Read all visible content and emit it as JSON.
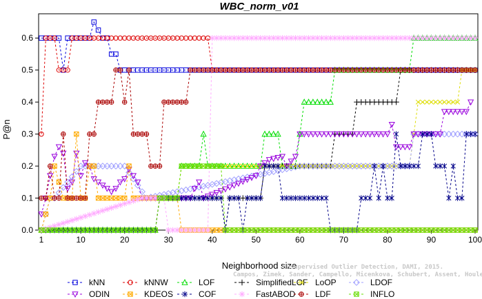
{
  "chart_data": {
    "type": "line",
    "title": "WBC_norm_v01",
    "xlabel": "Neighborhood size",
    "ylabel": "P@n",
    "xlim": [
      1,
      100
    ],
    "ylim": [
      0,
      0.65
    ],
    "xticks": [
      1,
      10,
      20,
      30,
      40,
      50,
      60,
      70,
      80,
      90,
      100
    ],
    "yticks": [
      0.0,
      0.1,
      0.2,
      0.3,
      0.4,
      0.5,
      0.6
    ],
    "grid": false,
    "legend_position": "bottom",
    "credit": "Campos, Zimek, Sander, Campello, Micenkova, Schubert, Assent, Houle",
    "credit_line1": "Unsupervised Outlier Detection, DAMI, 2015.",
    "series": [
      {
        "name": "kNN",
        "color": "#0000dd",
        "marker": "square",
        "segments": [
          [
            1,
            0.6
          ],
          [
            5,
            0.6
          ],
          [
            6,
            0.5
          ],
          [
            7,
            0.6
          ],
          [
            12,
            0.6
          ],
          [
            13,
            0.65
          ],
          [
            15,
            0.6
          ],
          [
            16,
            0.6
          ],
          [
            17,
            0.55
          ],
          [
            18,
            0.55
          ],
          [
            19,
            0.5
          ],
          [
            100,
            0.5
          ]
        ]
      },
      {
        "name": "kNNW",
        "color": "#dd0000",
        "marker": "circle",
        "segments": [
          [
            1,
            0.3
          ],
          [
            2,
            0.6
          ],
          [
            4,
            0.6
          ],
          [
            5,
            0.5
          ],
          [
            7,
            0.5
          ],
          [
            8,
            0.6
          ],
          [
            37,
            0.6
          ],
          [
            38,
            0.6
          ],
          [
            39,
            0.6
          ],
          [
            40,
            0.5
          ],
          [
            100,
            0.5
          ]
        ]
      },
      {
        "name": "LOF",
        "color": "#00dd00",
        "marker": "triangle",
        "segments": [
          [
            1,
            0.0
          ],
          [
            27,
            0.0
          ],
          [
            28,
            0.1
          ],
          [
            32,
            0.1
          ],
          [
            33,
            0.2
          ],
          [
            37,
            0.2
          ],
          [
            38,
            0.3
          ],
          [
            39,
            0.2
          ],
          [
            51,
            0.2
          ],
          [
            52,
            0.3
          ],
          [
            55,
            0.3
          ],
          [
            56,
            0.2
          ],
          [
            59,
            0.2
          ],
          [
            60,
            0.3
          ],
          [
            61,
            0.4
          ],
          [
            67,
            0.4
          ],
          [
            68,
            0.5
          ],
          [
            85,
            0.5
          ],
          [
            86,
            0.6
          ],
          [
            100,
            0.6
          ]
        ]
      },
      {
        "name": "SimplifiedLOF",
        "color": "#000000",
        "marker": "plus",
        "segments": [
          [
            1,
            0.0
          ],
          [
            27,
            0.0
          ],
          [
            28,
            0.1
          ],
          [
            42,
            0.1
          ],
          [
            43,
            0.0
          ],
          [
            44,
            0.1
          ],
          [
            51,
            0.1
          ],
          [
            52,
            0.2
          ],
          [
            67,
            0.2
          ],
          [
            68,
            0.3
          ],
          [
            72,
            0.3
          ],
          [
            73,
            0.4
          ],
          [
            82,
            0.4
          ],
          [
            83,
            0.5
          ],
          [
            100,
            0.5
          ]
        ]
      },
      {
        "name": "LoOP",
        "color": "#dddd00",
        "marker": "x",
        "segments": [
          [
            1,
            0.0
          ],
          [
            27,
            0.0
          ],
          [
            28,
            0.1
          ],
          [
            32,
            0.1
          ],
          [
            33,
            0.2
          ],
          [
            85,
            0.2
          ],
          [
            86,
            0.3
          ],
          [
            87,
            0.4
          ],
          [
            95,
            0.4
          ],
          [
            96,
            0.4
          ],
          [
            97,
            0.5
          ],
          [
            100,
            0.5
          ]
        ]
      },
      {
        "name": "LDOF",
        "color": "#a0a0ff",
        "marker": "diamond",
        "segments": [
          [
            1,
            0.0
          ],
          [
            3,
            0.1
          ],
          [
            4,
            0.1
          ],
          [
            10,
            0.2
          ],
          [
            20,
            0.2
          ],
          [
            25,
            0.1
          ],
          [
            60,
            0.2
          ],
          [
            85,
            0.2
          ],
          [
            86,
            0.3
          ],
          [
            100,
            0.3
          ]
        ]
      },
      {
        "name": "ODIN",
        "color": "#9900dd",
        "marker": "triangle-down",
        "segments": [
          [
            1,
            0.05
          ],
          [
            2,
            0.1
          ],
          [
            3,
            0.17
          ],
          [
            4,
            0.23
          ],
          [
            5,
            0.26
          ],
          [
            6,
            0.24
          ],
          [
            7,
            0.13
          ],
          [
            8,
            0.15
          ],
          [
            9,
            0.24
          ],
          [
            10,
            0.17
          ],
          [
            11,
            0.21
          ],
          [
            12,
            0.2
          ],
          [
            13,
            0.16
          ],
          [
            14,
            0.15
          ],
          [
            15,
            0.14
          ],
          [
            16,
            0.13
          ],
          [
            17,
            0.12
          ],
          [
            18,
            0.13
          ],
          [
            19,
            0.15
          ],
          [
            20,
            0.16
          ],
          [
            21,
            0.19
          ],
          [
            22,
            0.17
          ],
          [
            23,
            0.15
          ],
          [
            24,
            0.1
          ],
          [
            30,
            0.1
          ],
          [
            35,
            0.1
          ],
          [
            36,
            0.13
          ],
          [
            37,
            0.15
          ],
          [
            38,
            0.1
          ],
          [
            45,
            0.14
          ],
          [
            50,
            0.17
          ],
          [
            51,
            0.2
          ],
          [
            53,
            0.22
          ],
          [
            56,
            0.23
          ],
          [
            57,
            0.2
          ],
          [
            59,
            0.23
          ],
          [
            60,
            0.3
          ],
          [
            80,
            0.3
          ],
          [
            81,
            0.33
          ],
          [
            82,
            0.26
          ],
          [
            85,
            0.26
          ],
          [
            86,
            0.3
          ],
          [
            92,
            0.3
          ],
          [
            93,
            0.37
          ],
          [
            98,
            0.37
          ],
          [
            99,
            0.4
          ]
        ]
      },
      {
        "name": "KDEOS",
        "color": "#ffaa00",
        "marker": "square-x",
        "segments": [
          [
            1,
            0.0
          ],
          [
            3,
            0.1
          ],
          [
            4,
            0.2
          ],
          [
            6,
            0.1
          ],
          [
            8,
            0.1
          ],
          [
            9,
            0.3
          ],
          [
            10,
            0.1
          ],
          [
            11,
            0.1
          ],
          [
            12,
            0.2
          ],
          [
            13,
            0.2
          ],
          [
            14,
            0.1
          ],
          [
            20,
            0.1
          ],
          [
            21,
            0.2
          ],
          [
            22,
            0.1
          ],
          [
            32,
            0.1
          ],
          [
            33,
            0.0
          ],
          [
            100,
            0.0
          ]
        ]
      },
      {
        "name": "COF",
        "color": "#000088",
        "marker": "asterisk",
        "segments": [
          [
            1,
            0.0
          ],
          [
            27,
            0.0
          ],
          [
            28,
            0.1
          ],
          [
            42,
            0.1
          ],
          [
            43,
            0.0
          ],
          [
            44,
            0.1
          ],
          [
            46,
            0.1
          ],
          [
            47,
            0.0
          ],
          [
            48,
            0.1
          ],
          [
            51,
            0.1
          ],
          [
            52,
            0.2
          ],
          [
            55,
            0.2
          ],
          [
            56,
            0.1
          ],
          [
            59,
            0.1
          ],
          [
            60,
            0.1
          ],
          [
            66,
            0.1
          ],
          [
            67,
            0.0
          ],
          [
            73,
            0.0
          ],
          [
            74,
            0.1
          ],
          [
            76,
            0.1
          ],
          [
            77,
            0.2
          ],
          [
            78,
            0.1
          ],
          [
            79,
            0.2
          ],
          [
            80,
            0.1
          ],
          [
            81,
            0.1
          ],
          [
            82,
            0.3
          ],
          [
            83,
            0.2
          ],
          [
            87,
            0.2
          ],
          [
            88,
            0.3
          ],
          [
            90,
            0.3
          ],
          [
            91,
            0.2
          ],
          [
            93,
            0.2
          ],
          [
            94,
            0.1
          ],
          [
            95,
            0.2
          ],
          [
            96,
            0.1
          ],
          [
            97,
            0.1
          ],
          [
            98,
            0.3
          ],
          [
            100,
            0.3
          ]
        ]
      },
      {
        "name": "FastABOD",
        "color": "#ffaaff",
        "marker": "flower",
        "segments": [
          [
            1,
            0.0
          ],
          [
            24,
            0.1
          ],
          [
            29,
            0.1
          ],
          [
            30,
            0.0
          ],
          [
            39,
            0.0
          ],
          [
            40,
            0.6
          ],
          [
            63,
            0.6
          ],
          [
            64,
            0.6
          ],
          [
            100,
            0.6
          ]
        ]
      },
      {
        "name": "LDF",
        "color": "#aa0000",
        "marker": "circle-plus",
        "segments": [
          [
            1,
            0.1
          ],
          [
            2,
            0.1
          ],
          [
            3,
            0.2
          ],
          [
            4,
            0.1
          ],
          [
            5,
            0.1
          ],
          [
            6,
            0.3
          ],
          [
            7,
            0.1
          ],
          [
            11,
            0.1
          ],
          [
            12,
            0.3
          ],
          [
            13,
            0.3
          ],
          [
            14,
            0.4
          ],
          [
            17,
            0.4
          ],
          [
            18,
            0.5
          ],
          [
            19,
            0.5
          ],
          [
            20,
            0.4
          ],
          [
            21,
            0.5
          ],
          [
            22,
            0.3
          ],
          [
            25,
            0.3
          ],
          [
            26,
            0.2
          ],
          [
            28,
            0.2
          ],
          [
            29,
            0.4
          ],
          [
            34,
            0.4
          ],
          [
            35,
            0.5
          ],
          [
            100,
            0.5
          ]
        ]
      },
      {
        "name": "INFLO",
        "color": "#66dd00",
        "marker": "square-x",
        "segments": [
          [
            1,
            0.0
          ],
          [
            27,
            0.0
          ],
          [
            28,
            0.1
          ],
          [
            31,
            0.1
          ],
          [
            32,
            0.1
          ],
          [
            33,
            0.2
          ],
          [
            41,
            0.2
          ],
          [
            42,
            0.2
          ],
          [
            43,
            0.0
          ],
          [
            100,
            0.0
          ]
        ]
      }
    ]
  }
}
